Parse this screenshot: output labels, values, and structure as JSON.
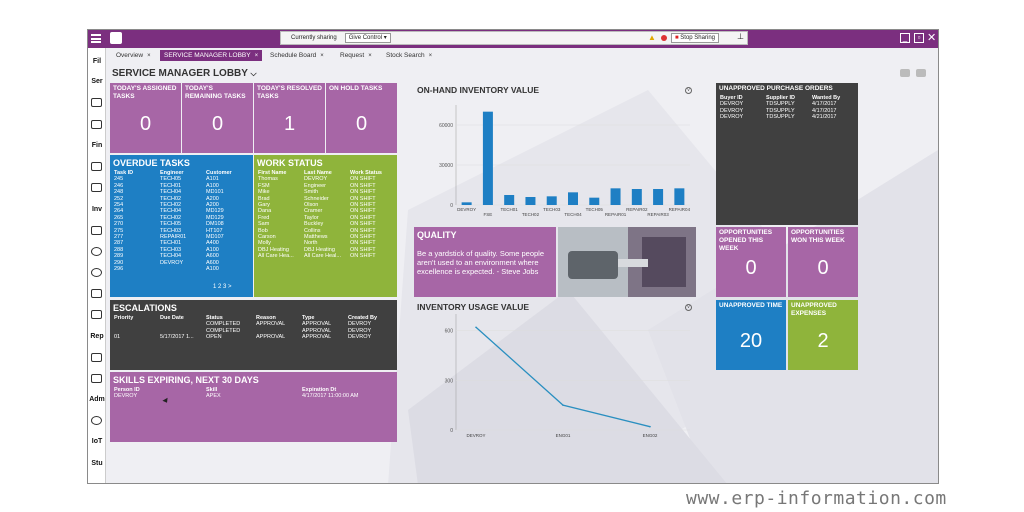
{
  "share_bar": {
    "sharing_label": "Currently sharing",
    "give_control": "Give Control",
    "stop_sharing": "Stop Sharing"
  },
  "tabs": [
    {
      "label": "Overview"
    },
    {
      "label": "SERVICE MANAGER LOBBY"
    },
    {
      "label": "Schedule Board"
    },
    {
      "label": "Request"
    },
    {
      "label": "Stock Search"
    }
  ],
  "sidebar": [
    "Fil",
    "Ser",
    "Fin",
    "Inv",
    "Rep",
    "Adm",
    "IoT",
    "Stu"
  ],
  "page_title": "SERVICE MANAGER LOBBY",
  "kpi": [
    {
      "label": "TODAY'S ASSIGNED TASKS",
      "value": "0"
    },
    {
      "label": "TODAY'S REMAINING TASKS",
      "value": "0"
    },
    {
      "label": "TODAY'S RESOLVED TASKS",
      "value": "1"
    },
    {
      "label": "ON HOLD TASKS",
      "value": "0"
    }
  ],
  "overdue": {
    "title": "OVERDUE TASKS",
    "headers": [
      "Task ID",
      "Engineer",
      "Customer"
    ],
    "rows": [
      [
        "245",
        "TECH05",
        "A101"
      ],
      [
        "246",
        "TECH01",
        "A100"
      ],
      [
        "248",
        "TECH04",
        "MD101"
      ],
      [
        "252",
        "TECH02",
        "A200"
      ],
      [
        "254",
        "TECH02",
        "A200"
      ],
      [
        "264",
        "TECH04",
        "MD129"
      ],
      [
        "265",
        "TECH02",
        "MD129"
      ],
      [
        "270",
        "TECH05",
        "DM108"
      ],
      [
        "275",
        "TECH03",
        "HT107"
      ],
      [
        "277",
        "REPAIR01",
        "MD107"
      ],
      [
        "287",
        "TECH01",
        "A400"
      ],
      [
        "288",
        "TECH03",
        "A100"
      ],
      [
        "289",
        "TECH04",
        "A600"
      ],
      [
        "290",
        "DEVROY",
        "A600"
      ],
      [
        "296",
        "",
        "A100"
      ]
    ],
    "pages": "1  2  3  >"
  },
  "work_status": {
    "title": "WORK STATUS",
    "headers": [
      "First Name",
      "Last Name",
      "Work Status"
    ],
    "rows": [
      [
        "Thomas",
        "DEVROY",
        "ON SHIFT"
      ],
      [
        "FSM",
        "Engineer",
        "ON SHIFT"
      ],
      [
        "Mike",
        "Smith",
        "ON SHIFT"
      ],
      [
        "Brad",
        "Schneider",
        "ON SHIFT"
      ],
      [
        "Gary",
        "Olson",
        "ON SHIFT"
      ],
      [
        "Dana",
        "Cramer",
        "ON SHIFT"
      ],
      [
        "Fred",
        "Taylor",
        "ON SHIFT"
      ],
      [
        "Sam",
        "Buckley",
        "ON SHIFT"
      ],
      [
        "Bob",
        "Collins",
        "ON SHIFT"
      ],
      [
        "Carson",
        "Matthews",
        "ON SHIFT"
      ],
      [
        "Molly",
        "North",
        "ON SHIFT"
      ],
      [
        "DBJ Heating",
        "DBJ Heating",
        "ON SHIFT"
      ],
      [
        "All Care Hea...",
        "All Care Heal...",
        "ON SHIFT"
      ]
    ]
  },
  "escalations": {
    "title": "ESCALATIONS",
    "headers": [
      "Priority",
      "Due Date",
      "Status",
      "Reason",
      "Type",
      "Created By"
    ],
    "rows": [
      [
        "",
        "",
        "COMPLETED",
        "APPROVAL",
        "APPROVAL",
        "DEVROY"
      ],
      [
        "",
        "",
        "COMPLETED",
        "",
        "APPROVAL",
        "DEVROY"
      ],
      [
        "01",
        "5/17/2017 1...",
        "OPEN",
        "APPROVAL",
        "APPROVAL",
        "DEVROY"
      ]
    ]
  },
  "skills": {
    "title": "SKILLS EXPIRING, NEXT 30 DAYS",
    "headers": [
      "Person ID",
      "Skill",
      "Expiration Dt"
    ],
    "rows": [
      [
        "DEVROY",
        "APEX",
        "4/17/2017 11:00:00 AM"
      ]
    ]
  },
  "inventory_value": {
    "title": "ON-HAND INVENTORY VALUE",
    "chart_data": {
      "type": "bar",
      "categories": [
        "DEVROY",
        "FSE",
        "TECH01",
        "TECH02",
        "TECH03",
        "TECH04",
        "TECH05",
        "REPAIR01",
        "REPAIR02",
        "REPAIR03",
        "REPAIR04"
      ],
      "values": [
        2000,
        70000,
        7500,
        6000,
        6500,
        9500,
        5500,
        12500,
        12000,
        12000,
        12500
      ],
      "yticks": [
        0,
        30000,
        60000
      ],
      "ylim": [
        0,
        75000
      ]
    }
  },
  "quality": {
    "title": "QUALITY",
    "quote": "Be a yardstick of quality. Some people aren't used to an environment where excellence is expected.   - Steve Jobs"
  },
  "usage_value": {
    "title": "INVENTORY USAGE VALUE",
    "chart_data": {
      "type": "line",
      "categories": [
        "DEVROY",
        "ENG01",
        "ENG02"
      ],
      "values": [
        620,
        150,
        20
      ],
      "yticks": [
        0,
        300,
        600
      ],
      "ylim": [
        0,
        700
      ]
    }
  },
  "purchase_orders": {
    "title": "UNAPPROVED PURCHASE ORDERS",
    "headers": [
      "Buyer ID",
      "Supplier ID",
      "Wanted By"
    ],
    "rows": [
      [
        "DEVROY",
        "TDSUPPLY",
        "4/17/2017"
      ],
      [
        "DEVROY",
        "TDSUPPLY",
        "4/17/2017"
      ],
      [
        "DEVROY",
        "TDSUPPLY",
        "4/21/2017"
      ]
    ]
  },
  "kpi2": [
    {
      "label": "OPPORTUNITIES OPENED THIS WEEK",
      "value": "0"
    },
    {
      "label": "OPPORTUNITIES WON THIS WEEK",
      "value": "0"
    },
    {
      "label": "UNAPPROVED TIME",
      "value": "20"
    },
    {
      "label": "UNAPPROVED EXPENSES",
      "value": "2"
    }
  ],
  "watermark": "www.erp-information.com",
  "colors": {
    "purple": "#a766a6",
    "blue": "#1e7fc4",
    "green": "#8fb43b",
    "dark": "#404040",
    "brand": "#7b2f7f"
  }
}
